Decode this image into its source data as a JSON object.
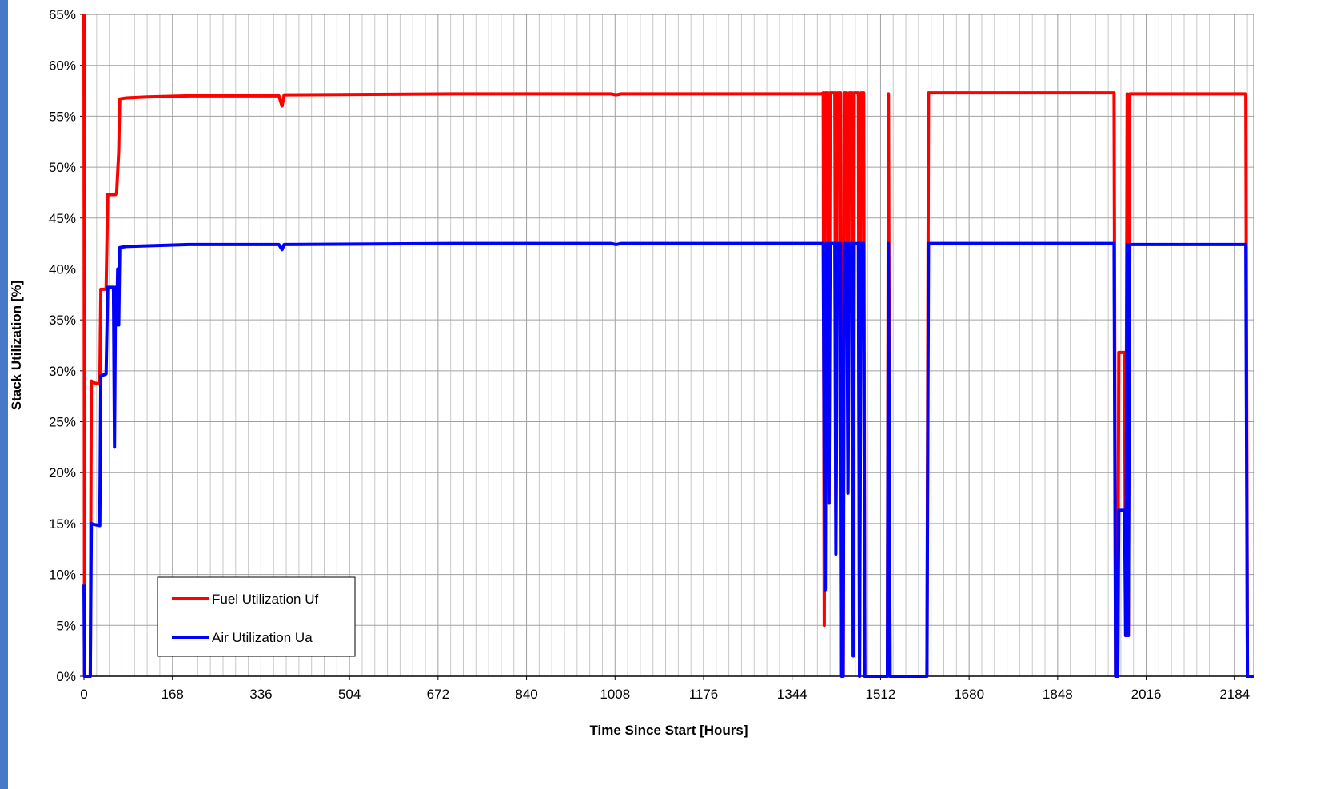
{
  "colors": {
    "fuel": "#ff0000",
    "air": "#0000ff",
    "grid": "#a0a0a0",
    "side_strip": "#4a78c8"
  },
  "chart_data": {
    "type": "line",
    "title": "",
    "xlabel": "Time Since Start [Hours]",
    "ylabel": "Stack Utilization [%]",
    "xlim": [
      0,
      2220
    ],
    "ylim": [
      0,
      65
    ],
    "x_ticks": [
      "0",
      "168",
      "336",
      "504",
      "672",
      "840",
      "1008",
      "1176",
      "1344",
      "1512",
      "1680",
      "1848",
      "2016",
      "2184"
    ],
    "y_ticks": [
      "0%",
      "5%",
      "10%",
      "15%",
      "20%",
      "25%",
      "30%",
      "35%",
      "40%",
      "45%",
      "50%",
      "55%",
      "60%",
      "65%"
    ],
    "grid": true,
    "legend": {
      "position": "bottom-left",
      "entries": [
        "Fuel Utilization Uf",
        "Air Utilization Ua"
      ]
    },
    "series": [
      {
        "name": "Fuel Utilization Uf",
        "color": "#ff0000",
        "points": [
          [
            0,
            65
          ],
          [
            1,
            0
          ],
          [
            12,
            0
          ],
          [
            14,
            29
          ],
          [
            20,
            28.8
          ],
          [
            30,
            28.7
          ],
          [
            32,
            38
          ],
          [
            42,
            38
          ],
          [
            45,
            47.3
          ],
          [
            60,
            47.3
          ],
          [
            62,
            47.5
          ],
          [
            66,
            51.5
          ],
          [
            68,
            56.7
          ],
          [
            80,
            56.8
          ],
          [
            120,
            56.9
          ],
          [
            200,
            57.0
          ],
          [
            370,
            57.0
          ],
          [
            376,
            56.0
          ],
          [
            380,
            57.1
          ],
          [
            700,
            57.2
          ],
          [
            1000,
            57.2
          ],
          [
            1010,
            57.1
          ],
          [
            1020,
            57.2
          ],
          [
            1400,
            57.2
          ],
          [
            1403,
            57.3
          ],
          [
            1405,
            5
          ],
          [
            1407,
            57.3
          ],
          [
            1412,
            57.3
          ],
          [
            1414,
            17
          ],
          [
            1416,
            57.3
          ],
          [
            1425,
            57.3
          ],
          [
            1427,
            16
          ],
          [
            1430,
            57.3
          ],
          [
            1436,
            57.3
          ],
          [
            1438,
            0
          ],
          [
            1441,
            0
          ],
          [
            1443,
            57.3
          ],
          [
            1448,
            57.3
          ],
          [
            1450,
            18
          ],
          [
            1453,
            57.3
          ],
          [
            1458,
            57.3
          ],
          [
            1460,
            2
          ],
          [
            1462,
            57.3
          ],
          [
            1470,
            57.3
          ],
          [
            1472,
            0
          ],
          [
            1475,
            57.3
          ],
          [
            1480,
            57.3
          ],
          [
            1482,
            0
          ],
          [
            1525,
            0
          ],
          [
            1527,
            57.2
          ],
          [
            1530,
            0
          ],
          [
            1600,
            0
          ],
          [
            1603,
            57.3
          ],
          [
            1760,
            57.3
          ],
          [
            1830,
            57.3
          ],
          [
            1955,
            57.3
          ],
          [
            1958,
            0
          ],
          [
            1962,
            0
          ],
          [
            1964,
            31.8
          ],
          [
            1975,
            31.8
          ],
          [
            1977,
            4
          ],
          [
            1980,
            57.2
          ],
          [
            1982,
            4
          ],
          [
            1985,
            57.2
          ],
          [
            2100,
            57.2
          ],
          [
            2205,
            57.2
          ],
          [
            2208,
            0
          ],
          [
            2220,
            0
          ]
        ]
      },
      {
        "name": "Air Utilization Ua",
        "color": "#0000ff",
        "points": [
          [
            0,
            9
          ],
          [
            1,
            0
          ],
          [
            12,
            0
          ],
          [
            14,
            15
          ],
          [
            20,
            14.9
          ],
          [
            30,
            14.8
          ],
          [
            32,
            29.5
          ],
          [
            42,
            29.7
          ],
          [
            45,
            38.2
          ],
          [
            56,
            38.2
          ],
          [
            58,
            22.5
          ],
          [
            60,
            38.2
          ],
          [
            62,
            34.5
          ],
          [
            64,
            40
          ],
          [
            66,
            34.5
          ],
          [
            68,
            42.1
          ],
          [
            80,
            42.2
          ],
          [
            200,
            42.4
          ],
          [
            370,
            42.4
          ],
          [
            376,
            41.9
          ],
          [
            380,
            42.4
          ],
          [
            700,
            42.5
          ],
          [
            1000,
            42.5
          ],
          [
            1010,
            42.4
          ],
          [
            1020,
            42.5
          ],
          [
            1400,
            42.5
          ],
          [
            1403,
            42.5
          ],
          [
            1405,
            20
          ],
          [
            1407,
            8.5
          ],
          [
            1409,
            42.5
          ],
          [
            1412,
            42.5
          ],
          [
            1414,
            17
          ],
          [
            1416,
            42.5
          ],
          [
            1425,
            42.5
          ],
          [
            1427,
            12
          ],
          [
            1430,
            42.5
          ],
          [
            1436,
            42.5
          ],
          [
            1438,
            0
          ],
          [
            1441,
            0
          ],
          [
            1443,
            42.5
          ],
          [
            1448,
            42.5
          ],
          [
            1450,
            18
          ],
          [
            1453,
            42.5
          ],
          [
            1458,
            42.5
          ],
          [
            1460,
            2
          ],
          [
            1462,
            42.5
          ],
          [
            1470,
            42.5
          ],
          [
            1472,
            0
          ],
          [
            1475,
            42.5
          ],
          [
            1480,
            42.5
          ],
          [
            1482,
            0
          ],
          [
            1525,
            0
          ],
          [
            1527,
            42.5
          ],
          [
            1530,
            0
          ],
          [
            1600,
            0
          ],
          [
            1603,
            42.5
          ],
          [
            1760,
            42.5
          ],
          [
            1830,
            42.5
          ],
          [
            1955,
            42.5
          ],
          [
            1958,
            0
          ],
          [
            1962,
            0
          ],
          [
            1964,
            16.3
          ],
          [
            1975,
            16.3
          ],
          [
            1977,
            4
          ],
          [
            1980,
            42.4
          ],
          [
            1982,
            4
          ],
          [
            1985,
            42.4
          ],
          [
            2100,
            42.4
          ],
          [
            2205,
            42.4
          ],
          [
            2208,
            0
          ],
          [
            2220,
            0
          ]
        ]
      }
    ]
  }
}
